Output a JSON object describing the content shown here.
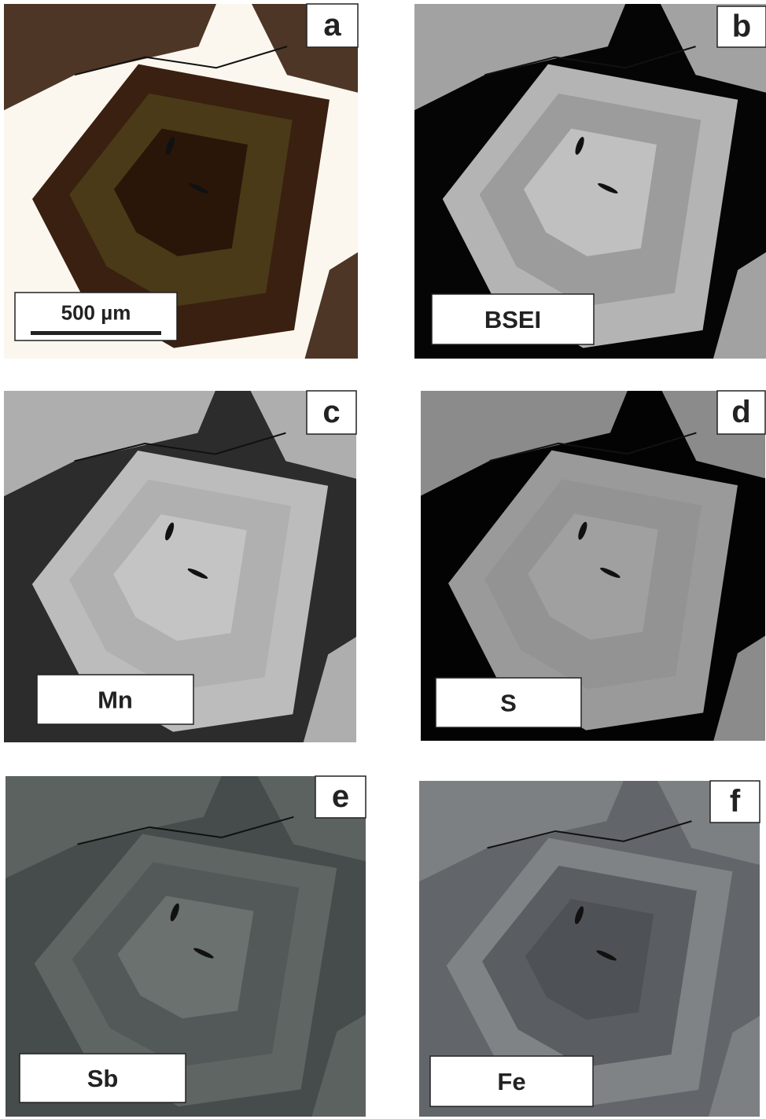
{
  "panels": [
    {
      "letter": "a",
      "label": "500 µm"
    },
    {
      "letter": "b",
      "label": "BSEI"
    },
    {
      "letter": "c",
      "label": "Mn"
    },
    {
      "letter": "d",
      "label": "S"
    },
    {
      "letter": "e",
      "label": "Sb"
    },
    {
      "letter": "f",
      "label": "Fe"
    }
  ]
}
